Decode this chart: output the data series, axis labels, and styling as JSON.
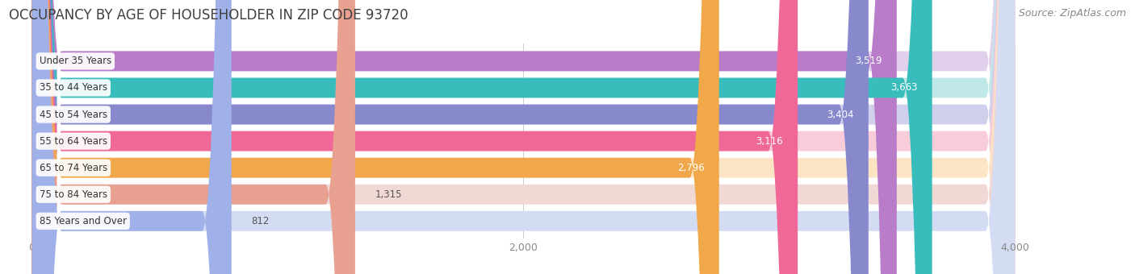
{
  "title": "OCCUPANCY BY AGE OF HOUSEHOLDER IN ZIP CODE 93720",
  "source": "Source: ZipAtlas.com",
  "categories": [
    "Under 35 Years",
    "35 to 44 Years",
    "45 to 54 Years",
    "55 to 64 Years",
    "65 to 74 Years",
    "75 to 84 Years",
    "85 Years and Over"
  ],
  "values": [
    3519,
    3663,
    3404,
    3116,
    2796,
    1315,
    812
  ],
  "bar_colors": [
    "#b87cc8",
    "#38bcbc",
    "#8888cc",
    "#f06898",
    "#f0a84a",
    "#e8a090",
    "#a0b0e8"
  ],
  "bar_bg_colors": [
    "#e0d0ec",
    "#c0e8e8",
    "#d0d0ec",
    "#f8ccd8",
    "#fce4c4",
    "#f0d8d4",
    "#d4dcf4"
  ],
  "data_max": 4000,
  "xlim_min": -130,
  "xlim_max": 4350,
  "xticks": [
    0,
    2000,
    4000
  ],
  "title_fontsize": 12,
  "source_fontsize": 9,
  "bar_height": 0.75,
  "bar_gap": 0.25,
  "background_color": "#ffffff",
  "label_bg_color": "#ffffff",
  "value_white_threshold": 1500
}
